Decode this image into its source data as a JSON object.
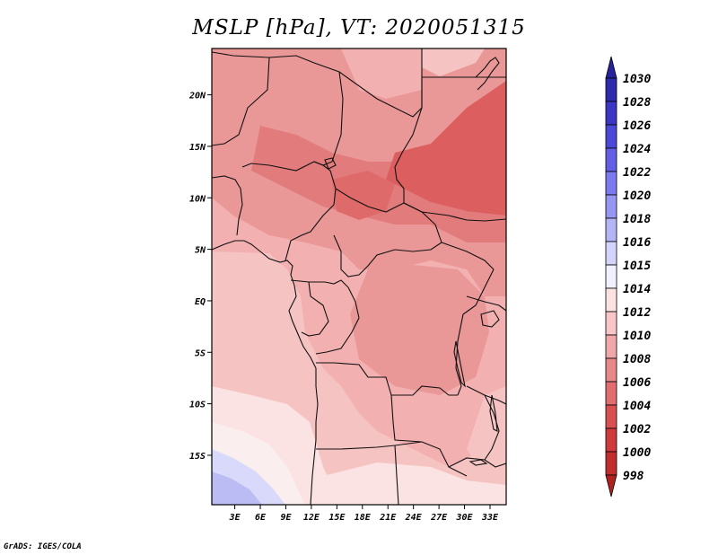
{
  "title": "MSLP [hPa], VT: 2020051315",
  "credit": "GrADS: IGES/COLA",
  "map": {
    "variable": "MSLP",
    "units": "hPa",
    "valid_time": "2020051315",
    "lat_labels": [
      "20N",
      "15N",
      "10N",
      "5N",
      "EQ",
      "5S",
      "10S",
      "15S"
    ],
    "lat_values": [
      20,
      15,
      10,
      5,
      0,
      -5,
      -10,
      -15
    ],
    "lon_labels": [
      "3E",
      "6E",
      "9E",
      "12E",
      "15E",
      "18E",
      "21E",
      "24E",
      "27E",
      "30E",
      "33E"
    ],
    "lon_values": [
      3,
      6,
      9,
      12,
      15,
      18,
      21,
      24,
      27,
      30,
      33
    ],
    "lat_range": [
      -19.8,
      24.5
    ],
    "lon_range": [
      0.3,
      34.9
    ]
  },
  "colorbar": {
    "labels": [
      "1030",
      "1028",
      "1026",
      "1024",
      "1022",
      "1020",
      "1018",
      "1016",
      "1015",
      "1014",
      "1012",
      "1010",
      "1008",
      "1006",
      "1004",
      "1002",
      "1000",
      "998"
    ],
    "colors": [
      "#28239b",
      "#2d2aae",
      "#3b36c3",
      "#4d49d8",
      "#625fe6",
      "#7b7aee",
      "#9696f3",
      "#b4b4f7",
      "#d4d4fb",
      "#f0f0ff",
      "#fbe3e3",
      "#f8c6c6",
      "#f0a7a7",
      "#e78989",
      "#e06e6e",
      "#d95050",
      "#cf3a3a",
      "#c22d2d",
      "#b02222"
    ]
  },
  "colors": {
    "accent_low": "#d94a4a",
    "accent_high": "#2d2aae"
  }
}
